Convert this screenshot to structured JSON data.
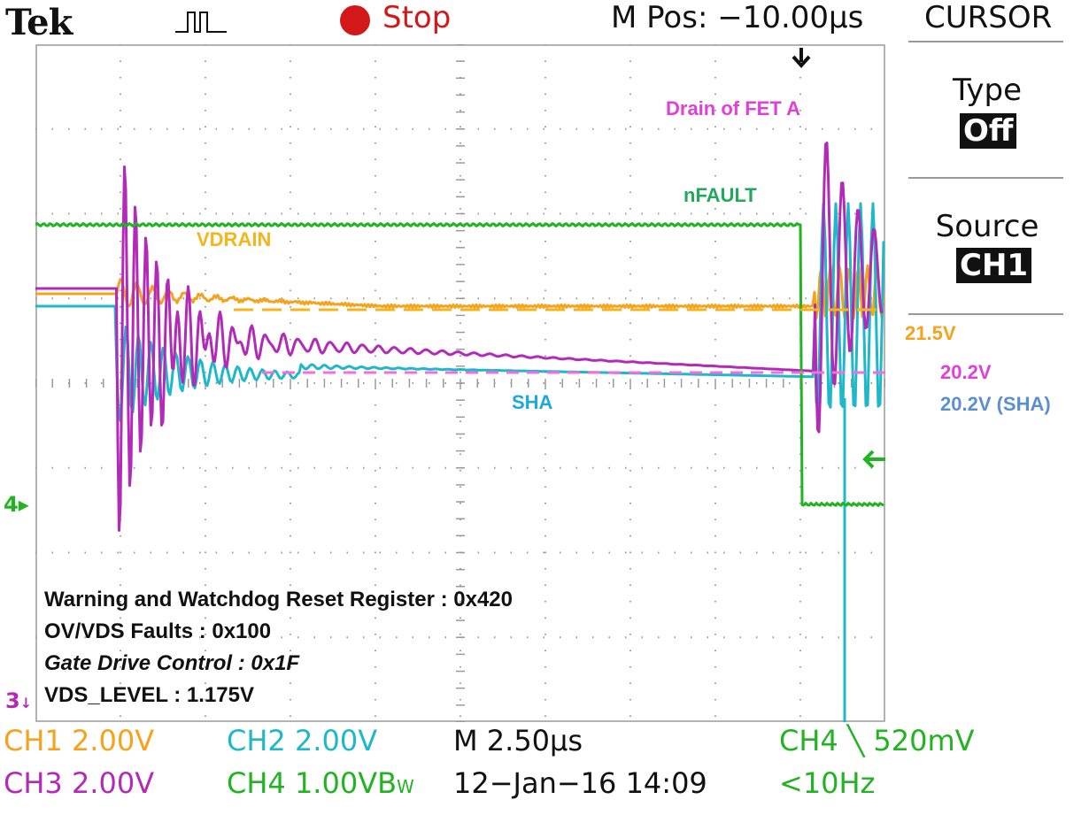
{
  "header": {
    "brand": "Tek",
    "status": "Stop",
    "position": "M Pos: −10.00µs",
    "menu_title": "CURSOR"
  },
  "side_menu": {
    "type_label": "Type",
    "type_value": "Off",
    "source_label": "Source",
    "source_value": "CH1"
  },
  "annotations": {
    "drain": "Drain of FET A",
    "nfault": "nFAULT",
    "vdrain": "VDRAIN",
    "sha": "SHA",
    "v_vdrain": "21.5V",
    "v_drain": "20.2V",
    "v_sha": "20.2V (SHA)"
  },
  "registers": [
    "Warning and Watchdog Reset Register : 0x420",
    "OV/VDS Faults : 0x100",
    "Gate Drive Control : 0x1F",
    "VDS_LEVEL : 1.175V"
  ],
  "markers": {
    "ch4": "4",
    "ch3": "3"
  },
  "bottom": {
    "ch1": "CH1  2.00V",
    "ch2": "CH2  2.00V",
    "ch3": "CH3  2.00V",
    "ch4": "CH4  1.00VB",
    "bw_suffix": "W",
    "timebase": "M 2.50µs",
    "date": "12−Jan−16 14:09",
    "trigger": "CH4 ╲ 520mV",
    "freq": "<10Hz"
  },
  "colors": {
    "ch1": "#f5a21c",
    "ch2": "#1fb8c8",
    "ch3": "#b22bb8",
    "ch4": "#22b322",
    "drain_label": "#e040d8",
    "sha_label": "#1ea8e0",
    "sha_volt": "#5b8fcf",
    "vdrain_label": "#f5b41c"
  }
}
